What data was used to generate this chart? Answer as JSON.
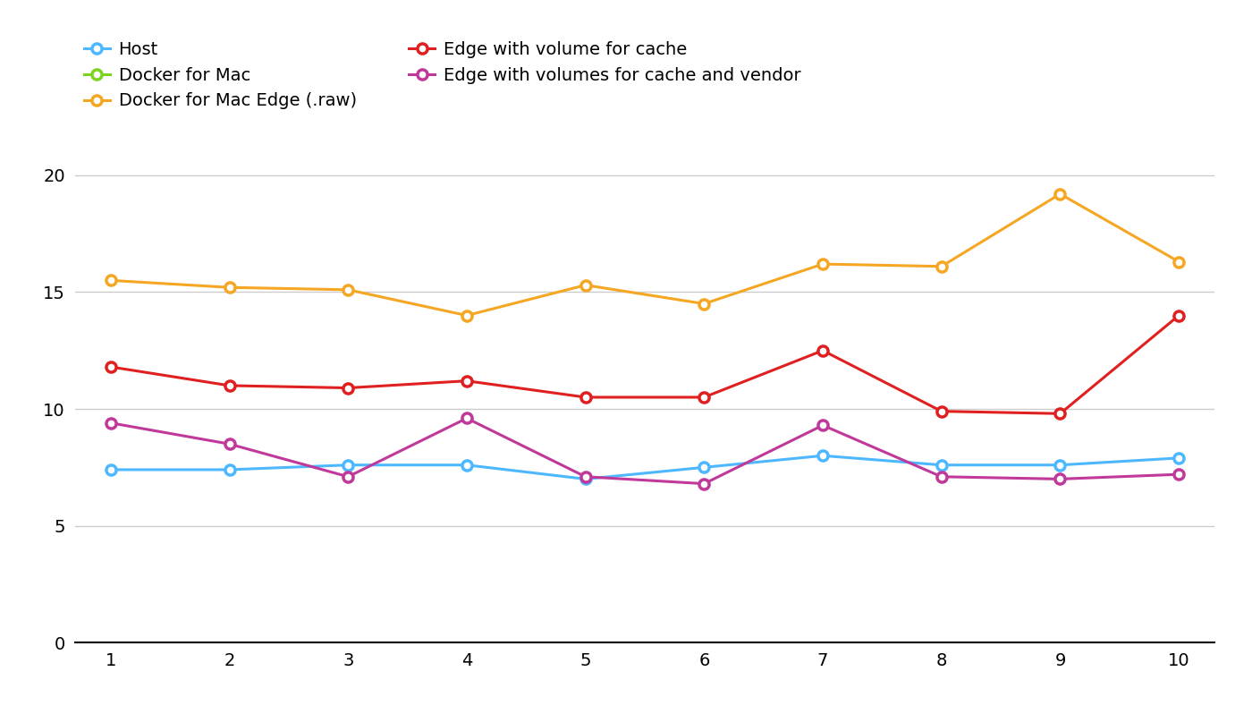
{
  "x": [
    1,
    2,
    3,
    4,
    5,
    6,
    7,
    8,
    9,
    10
  ],
  "series": {
    "Host": {
      "color": "#4db8ff",
      "values": [
        7.4,
        7.4,
        7.6,
        7.6,
        7.0,
        7.5,
        8.0,
        7.6,
        7.6,
        7.9
      ]
    },
    "Docker for Mac Edge (.raw)": {
      "color": "#f5a623",
      "values": [
        15.5,
        15.2,
        15.1,
        14.0,
        15.3,
        14.5,
        16.2,
        16.1,
        19.2,
        16.3
      ]
    },
    "Edge with volumes for cache and vendor": {
      "color": "#c0399a",
      "values": [
        9.4,
        8.5,
        7.1,
        9.6,
        7.1,
        6.8,
        9.3,
        7.1,
        7.0,
        7.2
      ]
    },
    "Docker for Mac": {
      "color": "#7ed321",
      "values": [
        null,
        null,
        null,
        null,
        null,
        null,
        null,
        null,
        null,
        null
      ]
    },
    "Edge with volume for cache": {
      "color": "#e02020",
      "values": [
        11.8,
        11.0,
        10.9,
        11.2,
        10.5,
        10.5,
        12.5,
        9.9,
        9.8,
        14.0
      ]
    }
  },
  "xlim": [
    0.7,
    10.3
  ],
  "ylim": [
    0,
    22
  ],
  "yticks": [
    0,
    5,
    10,
    15,
    20
  ],
  "xticks": [
    1,
    2,
    3,
    4,
    5,
    6,
    7,
    8,
    9,
    10
  ],
  "background_color": "#ffffff",
  "grid_color": "#cccccc",
  "marker": "o",
  "marker_size": 8,
  "linewidth": 2.2,
  "legend_fontsize": 14,
  "tick_fontsize": 14
}
